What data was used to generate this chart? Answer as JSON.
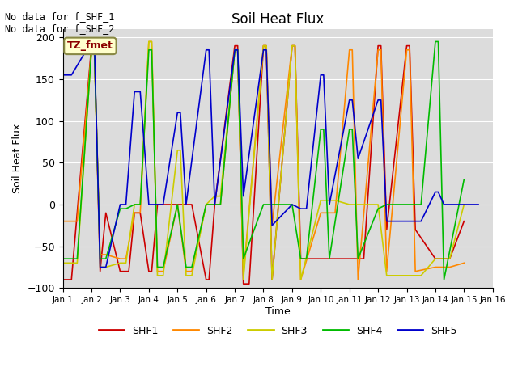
{
  "title": "Soil Heat Flux",
  "ylabel": "Soil Heat Flux",
  "xlabel": "Time",
  "annotation_text": "No data for f_SHF_1\nNo data for f_SHF_2",
  "legend_box_text": "TZ_fmet",
  "ylim": [
    -100,
    210
  ],
  "xlim": [
    1,
    16
  ],
  "bg_color": "#dcdcdc",
  "yticks": [
    -100,
    -50,
    0,
    50,
    100,
    150,
    200
  ],
  "xtick_labels": [
    "Jan 1",
    "Jan 2",
    "Jan 3",
    "Jan 4",
    "Jan 5",
    "Jan 6",
    "Jan 7",
    "Jan 8",
    "Jan 9",
    "Jan 10",
    "Jan 11",
    "Jan 12",
    "Jan 13",
    "Jan 14",
    "Jan 15",
    "Jan 16"
  ],
  "series": {
    "SHF1": {
      "color": "#cc0000",
      "x": [
        1.0,
        1.3,
        1.5,
        2.0,
        2.1,
        2.3,
        2.5,
        3.0,
        3.1,
        3.3,
        3.5,
        3.7,
        4.0,
        4.1,
        4.3,
        4.5,
        5.0,
        5.5,
        6.0,
        6.1,
        6.3,
        7.0,
        7.1,
        7.3,
        7.5,
        8.0,
        8.1,
        8.3,
        9.0,
        9.1,
        9.3,
        10.0,
        10.5,
        11.0,
        11.5,
        12.0,
        12.1,
        12.3,
        13.0,
        13.1,
        13.3,
        14.0,
        14.5,
        15.0
      ],
      "y": [
        -90,
        -90,
        -10,
        190,
        190,
        -80,
        -10,
        -80,
        -80,
        -80,
        -10,
        -10,
        -80,
        -80,
        0,
        0,
        0,
        0,
        -90,
        -90,
        0,
        190,
        190,
        -95,
        -95,
        190,
        190,
        -90,
        190,
        190,
        -65,
        -65,
        -65,
        -65,
        -65,
        190,
        190,
        -30,
        190,
        190,
        -30,
        -65,
        -65,
        -20
      ]
    },
    "SHF2": {
      "color": "#ff8800",
      "x": [
        1.0,
        1.3,
        1.5,
        2.0,
        2.1,
        2.3,
        2.5,
        3.0,
        3.2,
        3.5,
        3.7,
        4.0,
        4.1,
        4.3,
        4.5,
        5.0,
        5.3,
        5.5,
        6.0,
        6.5,
        7.0,
        7.1,
        7.3,
        8.0,
        8.1,
        8.3,
        9.0,
        9.1,
        9.3,
        10.0,
        10.5,
        11.0,
        11.1,
        11.3,
        12.0,
        12.1,
        12.3,
        13.0,
        13.1,
        13.3,
        14.0,
        14.5,
        15.0
      ],
      "y": [
        -20,
        -20,
        -20,
        185,
        185,
        -60,
        -60,
        -65,
        -65,
        -10,
        -10,
        195,
        195,
        -80,
        -80,
        0,
        -80,
        -80,
        0,
        0,
        185,
        185,
        -85,
        190,
        190,
        -25,
        190,
        190,
        -90,
        -10,
        -10,
        185,
        185,
        -90,
        185,
        185,
        -80,
        185,
        185,
        -80,
        -75,
        -75,
        -70
      ]
    },
    "SHF3": {
      "color": "#cccc00",
      "x": [
        1.0,
        1.3,
        1.5,
        2.0,
        2.1,
        2.3,
        2.5,
        3.0,
        3.2,
        3.5,
        3.7,
        4.0,
        4.1,
        4.3,
        4.5,
        5.0,
        5.1,
        5.3,
        5.5,
        6.0,
        6.3,
        6.5,
        7.0,
        7.1,
        7.3,
        8.0,
        8.1,
        8.3,
        9.0,
        9.1,
        9.3,
        10.0,
        10.5,
        11.0,
        11.5,
        12.0,
        12.3,
        12.5,
        13.0,
        13.5,
        14.0,
        14.5,
        15.0
      ],
      "y": [
        -70,
        -70,
        -70,
        185,
        185,
        -75,
        -75,
        -70,
        -70,
        0,
        0,
        195,
        195,
        -85,
        -85,
        65,
        65,
        -85,
        -85,
        0,
        10,
        10,
        185,
        185,
        -90,
        190,
        190,
        -90,
        190,
        190,
        -90,
        5,
        5,
        0,
        0,
        0,
        -85,
        -85,
        -85,
        -85,
        -65,
        -65,
        0
      ]
    },
    "SHF4": {
      "color": "#00bb00",
      "x": [
        1.0,
        1.3,
        1.5,
        2.0,
        2.1,
        2.3,
        2.5,
        3.0,
        3.2,
        3.5,
        3.7,
        4.0,
        4.1,
        4.3,
        4.5,
        5.0,
        5.3,
        5.5,
        6.0,
        6.5,
        7.0,
        7.1,
        7.3,
        8.0,
        8.5,
        9.0,
        9.3,
        9.5,
        10.0,
        10.1,
        10.3,
        11.0,
        11.1,
        11.3,
        12.0,
        12.3,
        12.5,
        13.0,
        13.5,
        14.0,
        14.1,
        14.3,
        15.0
      ],
      "y": [
        -65,
        -65,
        -65,
        185,
        185,
        -65,
        -65,
        -5,
        -5,
        0,
        0,
        185,
        185,
        -75,
        -75,
        0,
        -75,
        -75,
        0,
        0,
        185,
        185,
        -65,
        0,
        0,
        0,
        -65,
        -65,
        90,
        90,
        -65,
        90,
        90,
        -65,
        -5,
        0,
        0,
        0,
        0,
        195,
        195,
        -90,
        30
      ]
    },
    "SHF5": {
      "color": "#0000cc",
      "x": [
        1.0,
        1.3,
        2.0,
        2.1,
        2.3,
        2.5,
        3.0,
        3.2,
        3.5,
        3.7,
        4.0,
        4.5,
        5.0,
        5.1,
        5.3,
        6.0,
        6.1,
        6.3,
        7.0,
        7.1,
        7.3,
        8.0,
        8.1,
        8.3,
        9.0,
        9.3,
        9.5,
        10.0,
        10.1,
        10.3,
        11.0,
        11.1,
        11.3,
        12.0,
        12.1,
        12.3,
        13.0,
        13.5,
        14.0,
        14.1,
        14.3,
        15.0,
        15.5
      ],
      "y": [
        155,
        155,
        195,
        195,
        -75,
        -75,
        0,
        0,
        135,
        135,
        0,
        0,
        110,
        110,
        0,
        185,
        185,
        0,
        185,
        185,
        10,
        185,
        185,
        -25,
        0,
        -5,
        -5,
        155,
        155,
        0,
        125,
        125,
        55,
        125,
        125,
        -20,
        -20,
        -20,
        15,
        15,
        0,
        0,
        0
      ]
    }
  }
}
